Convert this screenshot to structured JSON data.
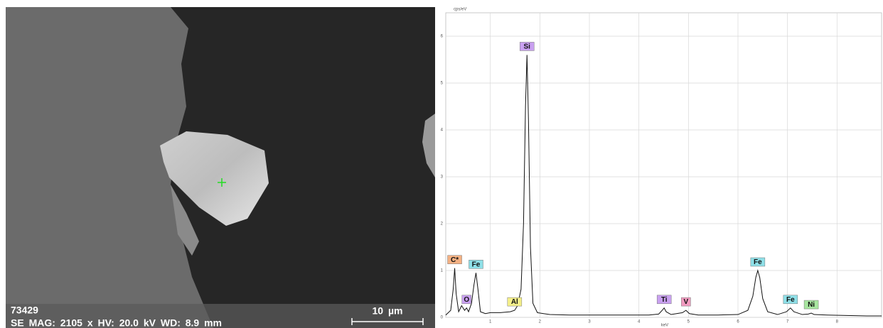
{
  "image_panel": {
    "id": "73429",
    "info": "SE MAG: 2105 x HV: 20.0 kV WD: 8.9 mm",
    "scale_bar": "10 µm"
  },
  "chart_data": {
    "type": "line",
    "y_label": "cps/eV",
    "x_label": "keV",
    "x": [
      0.1,
      0.2,
      0.25,
      0.28,
      0.31,
      0.36,
      0.42,
      0.48,
      0.52,
      0.56,
      0.62,
      0.67,
      0.71,
      0.75,
      0.8,
      0.9,
      1.0,
      1.2,
      1.4,
      1.49,
      1.55,
      1.62,
      1.67,
      1.71,
      1.74,
      1.77,
      1.81,
      1.86,
      1.95,
      2.2,
      2.6,
      3.0,
      3.4,
      3.8,
      4.2,
      4.4,
      4.47,
      4.51,
      4.55,
      4.65,
      4.88,
      4.95,
      5.02,
      5.2,
      5.6,
      6.0,
      6.2,
      6.3,
      6.36,
      6.4,
      6.44,
      6.5,
      6.6,
      6.8,
      6.98,
      7.06,
      7.13,
      7.3,
      7.42,
      7.48,
      7.54,
      7.8,
      8.2,
      8.6,
      8.9
    ],
    "values": [
      0.05,
      0.15,
      0.6,
      1.05,
      0.5,
      0.12,
      0.25,
      0.15,
      0.2,
      0.12,
      0.3,
      0.7,
      0.95,
      0.6,
      0.12,
      0.08,
      0.1,
      0.1,
      0.12,
      0.15,
      0.25,
      0.6,
      2.0,
      4.5,
      5.6,
      4.2,
      1.5,
      0.3,
      0.1,
      0.06,
      0.05,
      0.05,
      0.05,
      0.05,
      0.05,
      0.07,
      0.15,
      0.2,
      0.12,
      0.06,
      0.1,
      0.15,
      0.08,
      0.05,
      0.05,
      0.06,
      0.15,
      0.45,
      0.85,
      1.0,
      0.85,
      0.4,
      0.12,
      0.06,
      0.12,
      0.2,
      0.12,
      0.06,
      0.07,
      0.09,
      0.06,
      0.05,
      0.04,
      0.03,
      0.03
    ],
    "color": "#111111",
    "xlim": [
      0.1,
      8.9
    ],
    "ylim": [
      0,
      6.5
    ],
    "xticks": [
      1,
      2,
      3,
      4,
      5,
      6,
      7,
      8
    ],
    "yticks": [
      0,
      1,
      2,
      3,
      4,
      5,
      6
    ],
    "grid": true,
    "annotations": [
      {
        "text": "C*",
        "x": 0.28,
        "color": "#f4b183"
      },
      {
        "text": "O",
        "x": 0.52,
        "color": "#c9a0f0"
      },
      {
        "text": "Fe",
        "x": 0.71,
        "color": "#8fe0e8"
      },
      {
        "text": "Al",
        "x": 1.49,
        "color": "#f5f08a"
      },
      {
        "text": "Si",
        "x": 1.74,
        "color": "#c9a0f0"
      },
      {
        "text": "Ti",
        "x": 4.51,
        "color": "#c9a0f0"
      },
      {
        "text": "V",
        "x": 4.95,
        "color": "#f29bc0"
      },
      {
        "text": "Fe",
        "x": 6.4,
        "color": "#8fe0e8"
      },
      {
        "text": "Fe",
        "x": 7.06,
        "color": "#8fe0e8"
      },
      {
        "text": "Ni",
        "x": 7.48,
        "color": "#a8e6a0"
      }
    ]
  }
}
